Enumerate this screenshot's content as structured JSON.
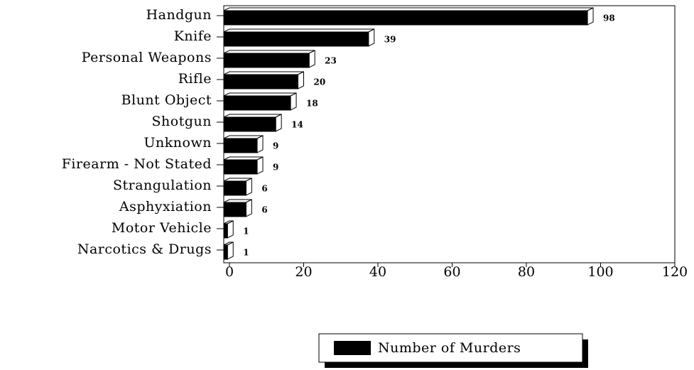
{
  "chart_data": {
    "type": "bar",
    "orientation": "horizontal",
    "categories": [
      "Handgun",
      "Knife",
      "Personal Weapons",
      "Rifle",
      "Blunt Object",
      "Shotgun",
      "Unknown",
      "Firearm - Not Stated",
      "Strangulation",
      "Asphyxiation",
      "Motor Vehicle",
      "Narcotics & Drugs"
    ],
    "series": [
      {
        "name": "Number of Murders",
        "color": "#000000",
        "values": [
          98,
          39,
          23,
          20,
          18,
          14,
          9,
          9,
          6,
          6,
          1,
          1
        ]
      }
    ],
    "xlim": [
      0,
      120
    ],
    "xticks": [
      0,
      20,
      40,
      60,
      80,
      100,
      120
    ],
    "legend": "bottom"
  }
}
